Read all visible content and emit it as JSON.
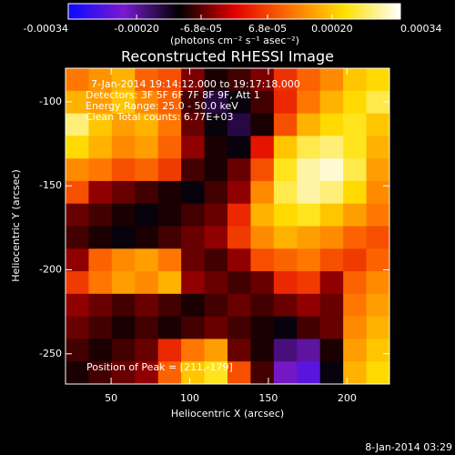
{
  "chart_data": {
    "type": "heatmap",
    "title": "Reconstructed RHESSI Image",
    "xlabel": "Heliocentric X (arcsec)",
    "ylabel": "Heliocentric Y (arcsec)",
    "colorbar_label": "(photons cm⁻² s⁻¹ asec⁻²)",
    "annotations": [
      "7-Jan-2014 19:14:12.000 to 19:17:18.000",
      "Detectors: 3F 5F 6F 7F 8F 9F, Att 1",
      "Energy Range: 25.0 - 50.0 keV",
      "Clean    Total counts: 6.77E+03"
    ],
    "peak_label": "Position of Peak = [211,-179]",
    "timestamp": "8-Jan-2014 03:29",
    "xlim": [
      21,
      227
    ],
    "ylim": [
      -268,
      -80
    ],
    "xticks": [
      50,
      100,
      150,
      200
    ],
    "yticks": [
      -100,
      -150,
      -200,
      -250
    ],
    "zlim": [
      -0.00034,
      0.00034
    ],
    "zticks": [
      -0.00034,
      {
        "value": -0.0002,
        "label": "-0.00020"
      },
      {
        "value": -6.8e-05,
        "label": "-6.8e-05"
      },
      {
        "value": 6.8e-05,
        "label": "6.8e-05"
      },
      {
        "value": 0.0002,
        "label": "0.00020"
      },
      0.00034
    ],
    "colorscale": [
      "#0a0aff",
      "#7a1ad0",
      "#000000",
      "#e00000",
      "#ff7000",
      "#ffe000",
      "#ffffff"
    ],
    "z": [
      [
        0.00012,
        0.00015,
        0.00018,
        0.0001,
        8e-05,
        -5e-05,
        -0.0001,
        -8e-05,
        -5e-05,
        5e-05,
        0.0001,
        0.00014,
        0.0002,
        0.00022
      ],
      [
        0.00018,
        0.00016,
        0.0002,
        0.00014,
        0.0001,
        -8e-05,
        -0.00015,
        -0.00012,
        -8e-05,
        4e-05,
        0.00012,
        0.00018,
        0.00022,
        0.00026
      ],
      [
        0.00028,
        0.0002,
        0.00016,
        0.00018,
        0.00012,
        -6e-05,
        -0.00012,
        -0.00015,
        -0.0001,
        8e-05,
        0.00018,
        0.00022,
        0.00024,
        0.0002
      ],
      [
        0.00022,
        0.00018,
        0.00014,
        0.00016,
        0.0001,
        -4e-05,
        -0.0001,
        -0.00012,
        2e-05,
        0.0002,
        0.00026,
        0.00028,
        0.00024,
        0.00018
      ],
      [
        0.00014,
        0.00012,
        8e-05,
        0.0001,
        6e-05,
        -8e-05,
        -0.0001,
        -6e-05,
        8e-05,
        0.00024,
        0.0003,
        0.00032,
        0.00026,
        0.00016
      ],
      [
        8e-05,
        -4e-05,
        -6e-05,
        -8e-05,
        -0.0001,
        -0.00012,
        -8e-05,
        -4e-05,
        0.00014,
        0.00026,
        0.0003,
        0.00028,
        0.00022,
        0.00014
      ],
      [
        -6e-05,
        -8e-05,
        -0.0001,
        -0.00012,
        -0.0001,
        -8e-05,
        -6e-05,
        4e-05,
        0.00018,
        0.00022,
        0.00024,
        0.0002,
        0.00016,
        0.00012
      ],
      [
        -8e-05,
        -0.0001,
        -0.00012,
        -0.0001,
        -8e-05,
        -6e-05,
        -4e-05,
        6e-05,
        0.00014,
        0.00018,
        0.00016,
        0.00014,
        0.0001,
        8e-05
      ],
      [
        -4e-05,
        0.0001,
        0.00014,
        0.00016,
        0.00012,
        -6e-05,
        -8e-05,
        -4e-05,
        8e-05,
        0.0001,
        0.00012,
        8e-05,
        6e-05,
        0.0001
      ],
      [
        6e-05,
        0.00012,
        0.00016,
        0.00014,
        0.00018,
        -4e-05,
        -6e-05,
        -8e-05,
        -6e-05,
        4e-05,
        6e-05,
        -4e-05,
        0.0001,
        0.00014
      ],
      [
        -4e-05,
        -6e-05,
        -8e-05,
        -6e-05,
        -8e-05,
        -0.0001,
        -8e-05,
        -6e-05,
        -8e-05,
        -6e-05,
        -4e-05,
        -6e-05,
        0.00012,
        0.00016
      ],
      [
        -6e-05,
        -8e-05,
        -0.0001,
        -8e-05,
        -0.0001,
        -8e-05,
        -6e-05,
        -8e-05,
        -0.0001,
        -0.00012,
        -8e-05,
        -6e-05,
        0.00014,
        0.00018
      ],
      [
        -8e-05,
        -0.0001,
        -8e-05,
        -6e-05,
        4e-05,
        0.00012,
        0.00016,
        -6e-05,
        -0.0001,
        -0.00018,
        -0.0002,
        -0.0001,
        0.00016,
        0.0002
      ],
      [
        -0.0001,
        -8e-05,
        -6e-05,
        -4e-05,
        0.0001,
        0.0002,
        0.00024,
        8e-05,
        -8e-05,
        -0.00022,
        -0.00026,
        -0.00012,
        0.00018,
        0.00022
      ]
    ]
  }
}
